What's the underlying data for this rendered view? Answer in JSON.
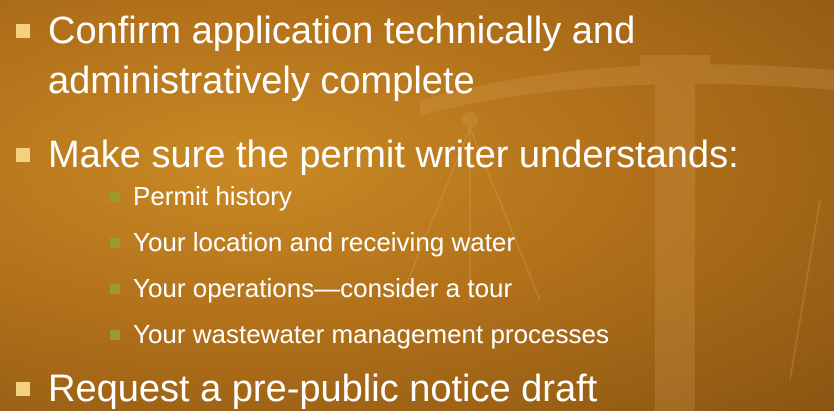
{
  "bullets": [
    {
      "text": "Confirm application technically and administratively complete"
    },
    {
      "text": "Make sure the permit writer understands:",
      "sub": [
        "Permit history",
        "Your location and receiving water",
        "Your operations—consider a tour",
        "Your wastewater management processes"
      ]
    },
    {
      "text": "Request a pre-public notice draft"
    }
  ]
}
